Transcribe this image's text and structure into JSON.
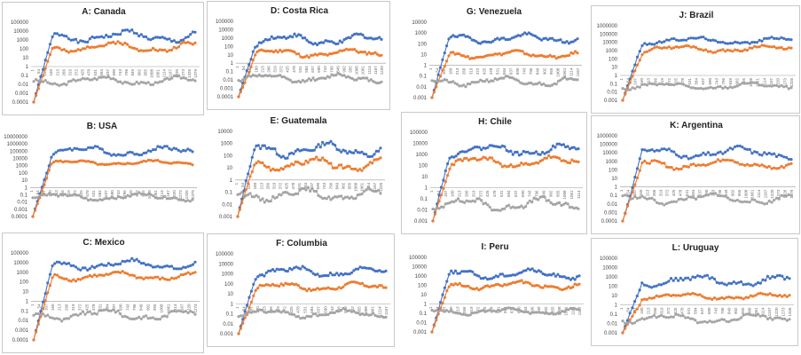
{
  "colors": {
    "series1": "#4472C4",
    "series2": "#ED7D31",
    "series3": "#A5A5A5",
    "axis": "#999999"
  },
  "chart_data": [
    {
      "type": "line",
      "title": "A: Canada",
      "yscale": "log",
      "yticks": [
        "100000",
        "10000",
        "1000",
        "100",
        "10",
        "1",
        "0.1",
        "0.01",
        "0.001",
        "0.0001"
      ],
      "xticks": [
        "1",
        "54",
        "107",
        "160",
        "213",
        "266",
        "319",
        "372",
        "425",
        "478",
        "531",
        "584",
        "637",
        "690",
        "743",
        "796",
        "849",
        "902",
        "955",
        "1008",
        "1061",
        "1114",
        "1167",
        "1220",
        "1273",
        "1326",
        "1379"
      ],
      "series": [
        {
          "level": 3.4,
          "amp": 0.8,
          "seed": 1
        },
        {
          "level": 2.2,
          "amp": 0.7,
          "seed": 2
        },
        {
          "level": -1.6,
          "amp": 0.6,
          "seed": 3
        }
      ]
    },
    {
      "type": "line",
      "title": "B: USA",
      "yscale": "log",
      "yticks": [
        "10000000",
        "1000000",
        "100000",
        "10000",
        "1000",
        "100",
        "10",
        "1",
        "0.1",
        "0.01",
        "0.001",
        "0.0001"
      ],
      "xticks": [
        "1",
        "54",
        "107",
        "160",
        "213",
        "266",
        "319",
        "372",
        "425",
        "478",
        "531",
        "584",
        "637",
        "690",
        "743",
        "796",
        "849",
        "902",
        "955",
        "1008",
        "1061",
        "1114",
        "1167",
        "1220",
        "1273",
        "1326",
        "1379"
      ],
      "series": [
        {
          "level": 5.0,
          "amp": 0.8,
          "seed": 4
        },
        {
          "level": 3.4,
          "amp": 0.4,
          "seed": 5
        },
        {
          "level": -1.3,
          "amp": 0.6,
          "seed": 6
        }
      ]
    },
    {
      "type": "line",
      "title": "C: Mexico",
      "yscale": "log",
      "yticks": [
        "100000",
        "10000",
        "1000",
        "100",
        "10",
        "1",
        "0.1",
        "0.01",
        "0.001",
        "0.0001"
      ],
      "xticks": [
        "1",
        "54",
        "107",
        "160",
        "213",
        "266",
        "319",
        "372",
        "425",
        "478",
        "531",
        "584",
        "637",
        "690",
        "743",
        "796",
        "849",
        "902",
        "955",
        "1008",
        "1061",
        "1114",
        "1167",
        "1220",
        "1273"
      ],
      "series": [
        {
          "level": 3.8,
          "amp": 0.6,
          "seed": 7
        },
        {
          "level": 2.6,
          "amp": 0.5,
          "seed": 8
        },
        {
          "level": -1.4,
          "amp": 0.7,
          "seed": 9
        }
      ]
    },
    {
      "type": "line",
      "title": "D: Costa Rica",
      "yscale": "log",
      "yticks": [
        "100000",
        "10000",
        "1000",
        "100",
        "10",
        "1",
        "0.1",
        "0.01",
        "0.001",
        "0.0001"
      ],
      "xticks": [
        "1",
        "54",
        "107",
        "160",
        "213",
        "266",
        "319",
        "372",
        "425",
        "478",
        "531",
        "584",
        "637",
        "690",
        "743",
        "796",
        "849",
        "902",
        "955",
        "1008",
        "1061",
        "1114",
        "1167",
        "1220"
      ],
      "series": [
        {
          "level": 2.8,
          "amp": 0.8,
          "seed": 10
        },
        {
          "level": 1.2,
          "amp": 0.6,
          "seed": 11
        },
        {
          "level": -1.8,
          "amp": 0.6,
          "seed": 12
        }
      ]
    },
    {
      "type": "line",
      "title": "E: Guatemala",
      "yscale": "log",
      "yticks": [
        "10000",
        "1000",
        "100",
        "10",
        "1",
        "0.1",
        "0.01",
        "0.001"
      ],
      "xticks": [
        "1",
        "54",
        "107",
        "160",
        "213",
        "266",
        "319",
        "372",
        "425",
        "478",
        "531",
        "584",
        "637",
        "690",
        "743",
        "796",
        "849",
        "902",
        "955",
        "1008",
        "1061",
        "1114",
        "1167",
        "1220"
      ],
      "series": [
        {
          "level": 2.5,
          "amp": 0.7,
          "seed": 13
        },
        {
          "level": 1.3,
          "amp": 0.6,
          "seed": 14
        },
        {
          "level": -1.2,
          "amp": 0.6,
          "seed": 15
        }
      ]
    },
    {
      "type": "line",
      "title": "F: Columbia",
      "yscale": "log",
      "yticks": [
        "100000",
        "10000",
        "1000",
        "100",
        "10",
        "1",
        "0.1",
        "0.01",
        "0.001"
      ],
      "xticks": [
        "1",
        "54",
        "107",
        "160",
        "213",
        "266",
        "319",
        "372",
        "425",
        "478",
        "531",
        "584",
        "637",
        "690",
        "743",
        "796",
        "849",
        "902",
        "955",
        "1008",
        "1061",
        "1114",
        "1167"
      ],
      "series": [
        {
          "level": 3.2,
          "amp": 0.6,
          "seed": 16
        },
        {
          "level": 1.7,
          "amp": 0.5,
          "seed": 17
        },
        {
          "level": -1.0,
          "amp": 0.5,
          "seed": 18
        }
      ]
    },
    {
      "type": "line",
      "title": "G: Venezuela",
      "yscale": "log",
      "yticks": [
        "10000",
        "1000",
        "100",
        "10",
        "1",
        "0.1",
        "0.01",
        "0.001"
      ],
      "xticks": [
        "1",
        "54",
        "107",
        "160",
        "213",
        "266",
        "319",
        "372",
        "425",
        "478",
        "531",
        "584",
        "637",
        "690",
        "743",
        "796",
        "849",
        "902",
        "955",
        "1008",
        "1061",
        "1114",
        "1167"
      ],
      "series": [
        {
          "level": 2.5,
          "amp": 0.5,
          "seed": 19
        },
        {
          "level": 1.0,
          "amp": 0.4,
          "seed": 20
        },
        {
          "level": -1.5,
          "amp": 0.5,
          "seed": 21
        }
      ]
    },
    {
      "type": "line",
      "title": "H: Chile",
      "yscale": "log",
      "yticks": [
        "100000",
        "10000",
        "1000",
        "100",
        "10",
        "1",
        "0.1",
        "0.01",
        "0.001"
      ],
      "xticks": [
        "1",
        "54",
        "107",
        "160",
        "213",
        "266",
        "319",
        "372",
        "425",
        "478",
        "531",
        "584",
        "637",
        "690",
        "743",
        "796",
        "849",
        "902",
        "955",
        "1008",
        "1061",
        "1114"
      ],
      "series": [
        {
          "level": 3.4,
          "amp": 0.6,
          "seed": 22
        },
        {
          "level": 2.3,
          "amp": 0.6,
          "seed": 23
        },
        {
          "level": -1.5,
          "amp": 0.7,
          "seed": 24
        }
      ]
    },
    {
      "type": "line",
      "title": "I: Peru",
      "yscale": "log",
      "yticks": [
        "100000",
        "10000",
        "1000",
        "100",
        "10",
        "1",
        "0.1",
        "0.01",
        "0.001"
      ],
      "xticks": [
        "1",
        "54",
        "107",
        "160",
        "213",
        "266",
        "319",
        "372",
        "425",
        "478",
        "531",
        "584",
        "637",
        "690",
        "743",
        "796",
        "849",
        "902",
        "955",
        "1008",
        "1061",
        "1114",
        "1167"
      ],
      "series": [
        {
          "level": 3.2,
          "amp": 0.6,
          "seed": 25
        },
        {
          "level": 2.0,
          "amp": 0.5,
          "seed": 26
        },
        {
          "level": -0.8,
          "amp": 0.4,
          "seed": 27
        }
      ]
    },
    {
      "type": "line",
      "title": "J: Brazil",
      "yscale": "log",
      "yticks": [
        "1000000",
        "100000",
        "10000",
        "1000",
        "100",
        "10",
        "1",
        "0.1",
        "0.01",
        "0.001"
      ],
      "xticks": [
        "1",
        "54",
        "107",
        "160",
        "213",
        "266",
        "319",
        "372",
        "425",
        "478",
        "531",
        "584",
        "637",
        "690",
        "743",
        "796",
        "849",
        "902",
        "955",
        "1008",
        "1061",
        "1114",
        "1167",
        "1220",
        "1273",
        "1326"
      ],
      "series": [
        {
          "level": 4.2,
          "amp": 0.5,
          "seed": 28
        },
        {
          "level": 3.2,
          "amp": 0.5,
          "seed": 29
        },
        {
          "level": -1.3,
          "amp": 0.5,
          "seed": 30
        }
      ]
    },
    {
      "type": "line",
      "title": "K: Argentina",
      "yscale": "log",
      "yticks": [
        "1000000",
        "100000",
        "10000",
        "1000",
        "100",
        "10",
        "1",
        "0.1",
        "0.01",
        "0.001",
        "0.0001"
      ],
      "xticks": [
        "1",
        "54",
        "107",
        "160",
        "213",
        "266",
        "319",
        "372",
        "425",
        "478",
        "531",
        "584",
        "637",
        "690",
        "743",
        "796",
        "849",
        "902",
        "955",
        "1008",
        "1061",
        "1114",
        "1167",
        "1220",
        "1273",
        "1326",
        "1379"
      ],
      "series": [
        {
          "level": 4.0,
          "amp": 0.8,
          "seed": 31
        },
        {
          "level": 2.7,
          "amp": 0.7,
          "seed": 32
        },
        {
          "level": -1.4,
          "amp": 0.7,
          "seed": 33
        }
      ]
    },
    {
      "type": "line",
      "title": "L: Uruguay",
      "yscale": "log",
      "yticks": [
        "100000",
        "10000",
        "1000",
        "100",
        "10",
        "1",
        "0.1",
        "0.01",
        "0.001"
      ],
      "xticks": [
        "1",
        "54",
        "107",
        "160",
        "213",
        "266",
        "319",
        "372",
        "425",
        "478",
        "531",
        "584",
        "637",
        "690",
        "743",
        "796",
        "849",
        "902",
        "955",
        "1008",
        "1061",
        "1114",
        "1167",
        "1220",
        "1273",
        "1326"
      ],
      "series": [
        {
          "level": 2.6,
          "amp": 0.7,
          "seed": 34
        },
        {
          "level": 0.9,
          "amp": 0.4,
          "seed": 35
        },
        {
          "level": -1.5,
          "amp": 0.6,
          "seed": 36
        }
      ]
    }
  ]
}
